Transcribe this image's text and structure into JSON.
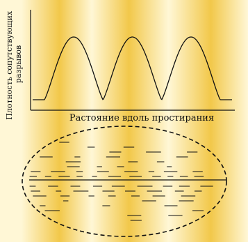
{
  "figure": {
    "y_axis_label_line1": "Плотность сопутствующих",
    "y_axis_label_line2": "разрывов",
    "x_axis_label": "Растояние вдоль простирания"
  },
  "colors": {
    "light_band": "#fff7d6",
    "dark_band": "#f2c84a",
    "ink": "#111111"
  },
  "chart_data": {
    "type": "line",
    "title": "",
    "xlabel": "Растояние вдоль простирания",
    "ylabel": "Плотность сопутствующих разрывов",
    "peaks": 3,
    "troughs": 4,
    "grid": false,
    "note_values": "qualitative curve with no tick labels"
  }
}
